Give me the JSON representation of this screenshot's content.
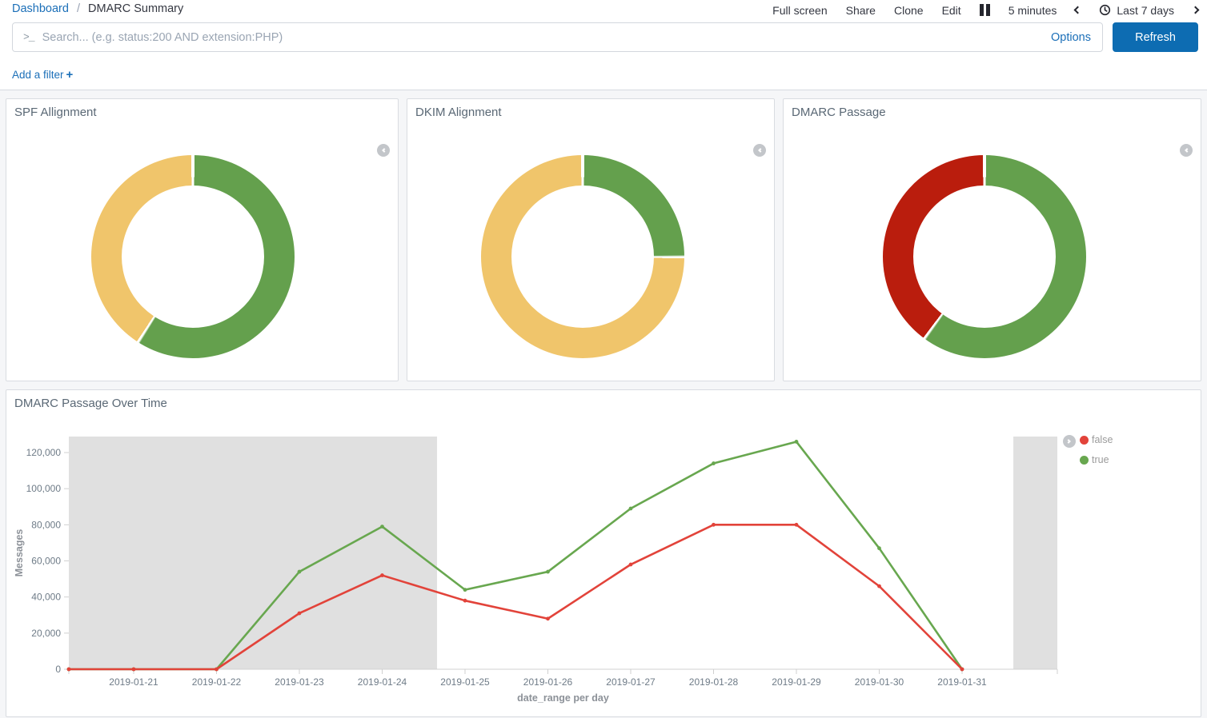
{
  "header": {
    "breadcrumb": {
      "link": "Dashboard",
      "separator": "/",
      "current": "DMARC Summary"
    },
    "menu": [
      "Full screen",
      "Share",
      "Clone",
      "Edit"
    ],
    "refresh_interval": "5 minutes",
    "time_range": "Last 7 days"
  },
  "query_bar": {
    "prompt": ">_",
    "placeholder": "Search... (e.g. status:200 AND extension:PHP)",
    "options_label": "Options",
    "refresh_label": "Refresh"
  },
  "filter_bar": {
    "add_filter_label": "Add a filter",
    "plus": "+"
  },
  "panels": [
    {
      "title": "SPF Allignment"
    },
    {
      "title": "DKIM Alignment"
    },
    {
      "title": "DMARC Passage"
    },
    {
      "title": "DMARC Passage Over Time"
    }
  ],
  "colors": {
    "link_blue": "#1b6fb8",
    "refresh_blue": "#0d6cb2",
    "donut_green": "#64a04d",
    "donut_yellow": "#f0c56b",
    "donut_red": "#ba1d0d",
    "line_red": "#e2433a",
    "line_green": "#68a74f",
    "band_gray": "#e0e0e0"
  },
  "chart_data": [
    {
      "type": "pie",
      "title": "SPF Allignment",
      "donut": true,
      "legend_collapsed": true,
      "slices": [
        {
          "color": "#64a04d",
          "percent": 59
        },
        {
          "color": "#f0c56b",
          "percent": 41
        }
      ]
    },
    {
      "type": "pie",
      "title": "DKIM Alignment",
      "donut": true,
      "legend_collapsed": true,
      "slices": [
        {
          "color": "#64a04d",
          "percent": 25
        },
        {
          "color": "#f0c56b",
          "percent": 75
        }
      ]
    },
    {
      "type": "pie",
      "title": "DMARC Passage",
      "donut": true,
      "legend_collapsed": true,
      "slices": [
        {
          "color": "#64a04d",
          "percent": 60
        },
        {
          "color": "#ba1d0d",
          "percent": 40
        }
      ]
    },
    {
      "type": "line",
      "title": "DMARC Passage Over Time",
      "xlabel": "date_range per day",
      "ylabel": "Messages",
      "x": [
        "2019-01-21",
        "2019-01-22",
        "2019-01-23",
        "2019-01-24",
        "2019-01-25",
        "2019-01-26",
        "2019-01-27",
        "2019-01-28",
        "2019-01-29",
        "2019-01-30",
        "2019-01-31"
      ],
      "ylim": [
        0,
        129000
      ],
      "yticks": [
        0,
        20000,
        40000,
        60000,
        80000,
        100000,
        120000
      ],
      "grid": false,
      "legend_position": "right",
      "series": [
        {
          "name": "false",
          "color": "#e2433a",
          "values": [
            0,
            0,
            31000,
            52000,
            38000,
            28000,
            58000,
            80000,
            80000,
            46000,
            0
          ]
        },
        {
          "name": "true",
          "color": "#68a74f",
          "values": [
            0,
            0,
            54000,
            79000,
            44000,
            54000,
            89000,
            114000,
            126000,
            67000,
            0
          ]
        }
      ],
      "shaded_regions_frac": [
        {
          "from": 0.0,
          "to": 0.3725
        },
        {
          "from": 0.9555,
          "to": 1.0
        }
      ]
    }
  ]
}
